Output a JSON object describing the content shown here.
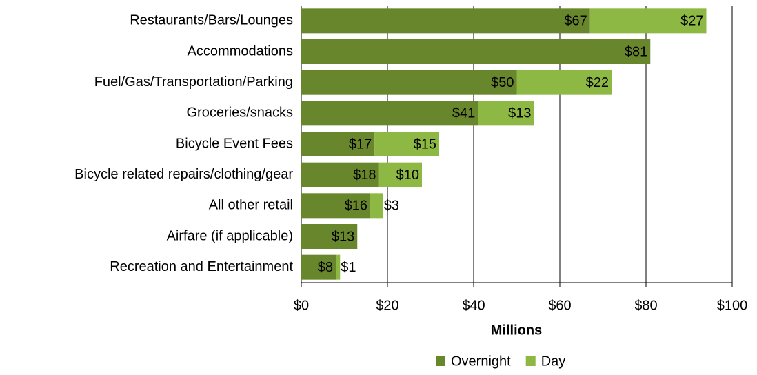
{
  "chart_data": {
    "type": "stacked-bar-horizontal",
    "categories": [
      "Restaurants/Bars/Lounges",
      "Accommodations",
      "Fuel/Gas/Transportation/Parking",
      "Groceries/snacks",
      "Bicycle Event Fees",
      "Bicycle related repairs/clothing/gear",
      "All other retail",
      "Airfare (if applicable)",
      "Recreation and Entertainment"
    ],
    "series": [
      {
        "name": "Overnight",
        "color": "#68862c",
        "values": [
          67,
          81,
          50,
          41,
          17,
          18,
          16,
          13,
          8
        ],
        "value_labels": [
          "$67",
          "$81",
          "$50",
          "$41",
          "$17",
          "$18",
          "$16",
          "$13",
          "$8"
        ]
      },
      {
        "name": "Day",
        "color": "#8db843",
        "values": [
          27,
          null,
          22,
          13,
          15,
          10,
          3,
          null,
          1
        ],
        "value_labels": [
          "$27",
          null,
          "$22",
          "$13",
          "$15",
          "$10",
          "$3",
          null,
          "$1"
        ]
      }
    ],
    "xlabel": "Millions",
    "xlim": [
      0,
      100
    ],
    "xticks": [
      {
        "value": 0,
        "label": "$0"
      },
      {
        "value": 20,
        "label": "$20"
      },
      {
        "value": 40,
        "label": "$40"
      },
      {
        "value": 60,
        "label": "$60"
      },
      {
        "value": 80,
        "label": "$80"
      },
      {
        "value": 100,
        "label": "$100"
      }
    ],
    "grid": true,
    "legend": "bottom"
  }
}
